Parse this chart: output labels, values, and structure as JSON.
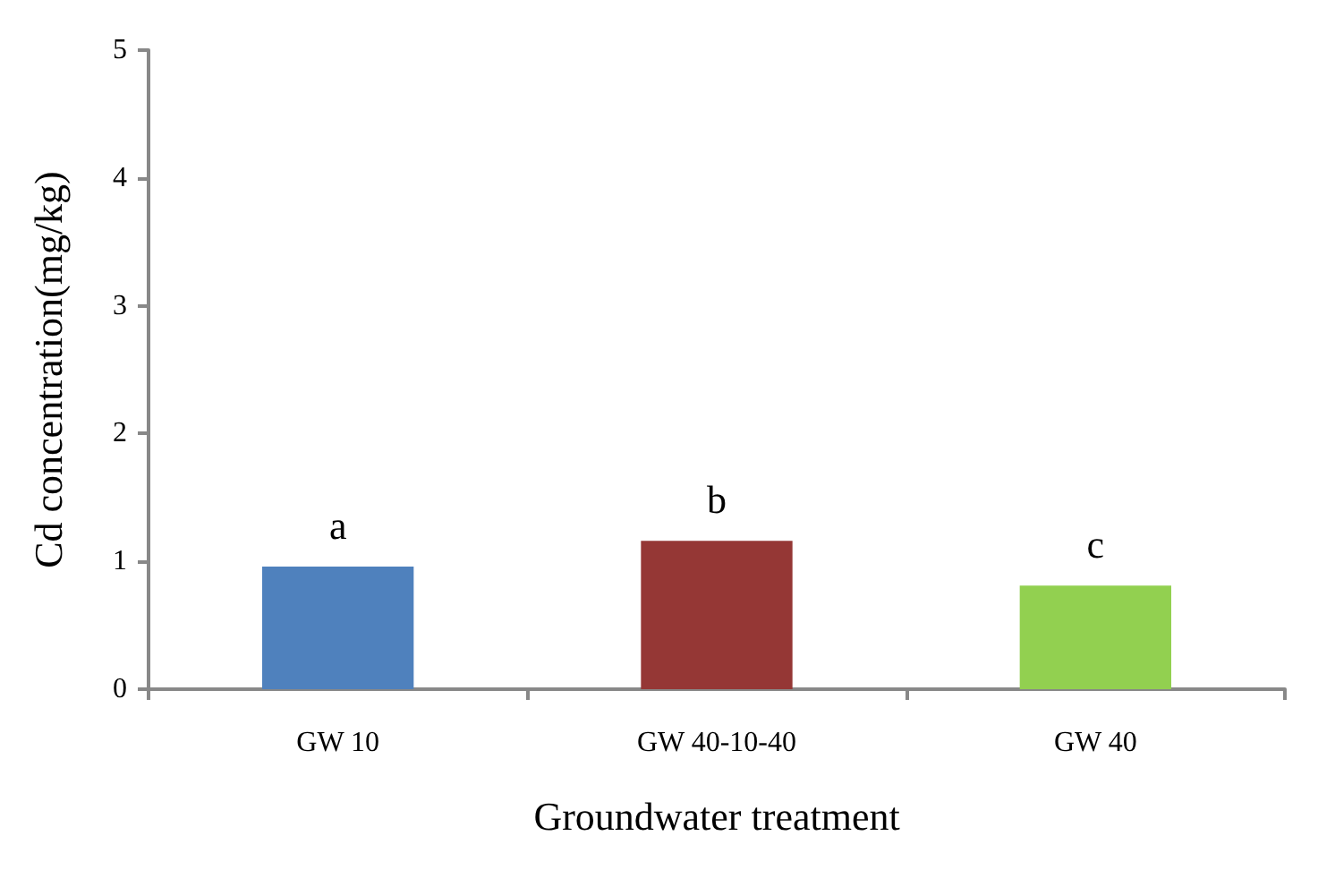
{
  "chart_data": {
    "type": "bar",
    "xlabel": "Groundwater treatment",
    "ylabel": "Cd concentration(mg/kg)",
    "categories": [
      "GW 10",
      "GW 40-10-40",
      "GW 40"
    ],
    "values": [
      0.96,
      1.16,
      0.81
    ],
    "colors": [
      "#4f81bd",
      "#953735",
      "#92d050"
    ],
    "ylim": [
      0,
      5
    ],
    "yticks": [
      0,
      1,
      2,
      3,
      4,
      5
    ],
    "grid": false,
    "annotations": [
      "a",
      "b",
      "c"
    ]
  }
}
